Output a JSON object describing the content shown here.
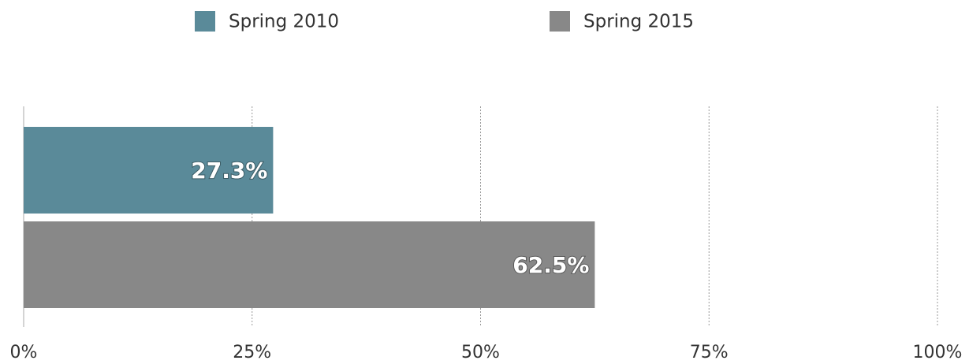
{
  "chart_data": {
    "type": "bar",
    "orientation": "horizontal",
    "categories": [
      null
    ],
    "series": [
      {
        "name": "Spring 2010",
        "color": "#5a8a99",
        "values": [
          27.3
        ],
        "value_labels": [
          "27.3%"
        ]
      },
      {
        "name": "Spring 2015",
        "color": "#888888",
        "values": [
          62.5
        ],
        "value_labels": [
          "62.5%"
        ]
      }
    ],
    "xlim": [
      0,
      100
    ],
    "xticks": [
      {
        "value": 0,
        "label": "0%"
      },
      {
        "value": 25,
        "label": "25%"
      },
      {
        "value": 50,
        "label": "50%"
      },
      {
        "value": 75,
        "label": "75%"
      },
      {
        "value": 100,
        "label": "100%"
      }
    ],
    "grid": true,
    "legend": "top"
  }
}
